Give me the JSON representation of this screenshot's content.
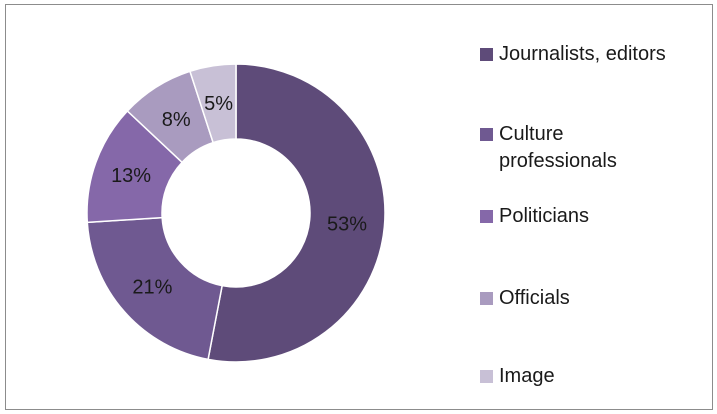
{
  "chart_data": {
    "type": "pie",
    "donut": true,
    "categories": [
      "Journalists, editors",
      "Culture professionals",
      "Politicians",
      "Officials",
      "Image"
    ],
    "values": [
      53,
      21,
      13,
      8,
      5
    ],
    "labels": [
      "53%",
      "21%",
      "13%",
      "8%",
      "5%"
    ],
    "colors": [
      "#5e4b79",
      "#6f5991",
      "#8568a9",
      "#a99bbf",
      "#c8c0d6"
    ],
    "legend_position": "right",
    "title": ""
  }
}
